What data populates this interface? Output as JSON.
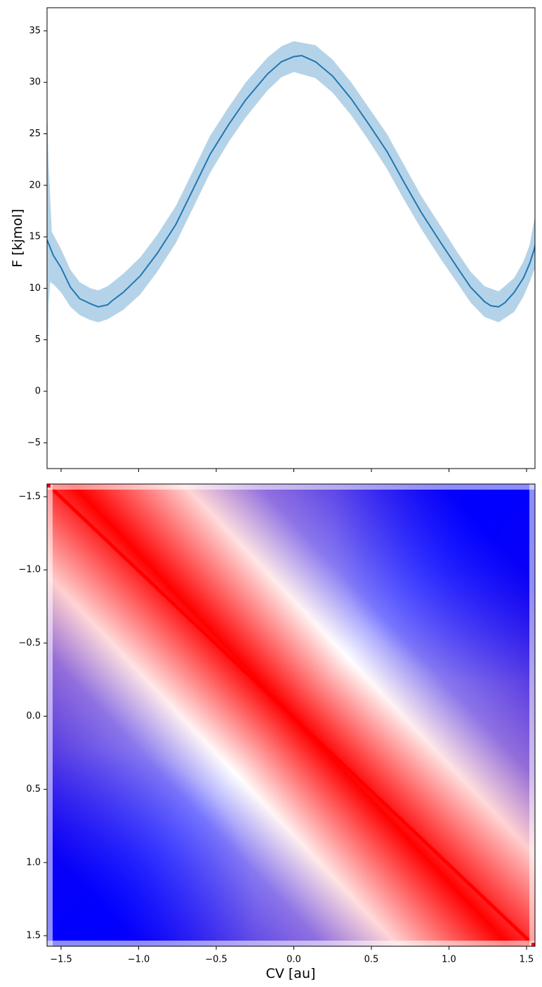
{
  "chart_data": [
    {
      "type": "line",
      "panel": "top",
      "title": "",
      "xlabel": "",
      "ylabel": "F [kjmol]",
      "xlim": [
        -1.59,
        1.58
      ],
      "ylim": [
        -7.5,
        37.3
      ],
      "grid": false,
      "legend": null,
      "yticks": [
        -5,
        0,
        5,
        10,
        15,
        20,
        25,
        30,
        35
      ],
      "ytick_labels": [
        "−5",
        "0",
        "5",
        "10",
        "15",
        "20",
        "25",
        "30",
        "35"
      ],
      "xticks": [
        -1.5,
        -1.0,
        -0.5,
        0.0,
        0.5,
        1.0,
        1.5
      ],
      "xtick_labels_visible": false,
      "line_color": "#1f77b4",
      "band_color": "#b5d3e8",
      "series": [
        {
          "name": "mean F",
          "x": [
            -1.59,
            -1.55,
            -1.5,
            -1.44,
            -1.38,
            -1.31,
            -1.26,
            -1.2,
            -1.17,
            -1.1,
            -0.99,
            -0.88,
            -0.76,
            -0.65,
            -0.54,
            -0.42,
            -0.31,
            -0.17,
            -0.08,
            0.0,
            0.05,
            0.14,
            0.25,
            0.37,
            0.48,
            0.6,
            0.71,
            0.82,
            0.94,
            1.05,
            1.14,
            1.23,
            1.27,
            1.32,
            1.36,
            1.42,
            1.48,
            1.52,
            1.55,
            1.58
          ],
          "values": [
            14.7,
            13.2,
            12.0,
            10.1,
            9.0,
            8.5,
            8.2,
            8.4,
            8.8,
            9.6,
            11.2,
            13.4,
            16.2,
            19.6,
            23.0,
            25.9,
            28.3,
            30.8,
            32.0,
            32.5,
            32.6,
            32.0,
            30.6,
            28.4,
            26.0,
            23.3,
            20.3,
            17.4,
            14.6,
            12.1,
            10.1,
            8.7,
            8.3,
            8.2,
            8.6,
            9.6,
            11.0,
            12.4,
            13.8,
            16.0
          ]
        },
        {
          "name": "upper band",
          "x": [
            -1.59,
            -1.58,
            -1.56,
            -1.5,
            -1.44,
            -1.38,
            -1.31,
            -1.26,
            -1.2,
            -1.1,
            -0.99,
            -0.88,
            -0.76,
            -0.65,
            -0.54,
            -0.42,
            -0.31,
            -0.17,
            -0.08,
            0.0,
            0.14,
            0.25,
            0.37,
            0.48,
            0.6,
            0.71,
            0.82,
            0.94,
            1.05,
            1.14,
            1.23,
            1.32,
            1.42,
            1.48,
            1.52,
            1.56,
            1.58
          ],
          "values": [
            27.5,
            22.0,
            15.5,
            13.8,
            11.8,
            10.6,
            10.0,
            9.8,
            10.2,
            11.4,
            13.0,
            15.2,
            18.0,
            21.4,
            24.8,
            27.6,
            30.0,
            32.4,
            33.5,
            34.0,
            33.6,
            32.2,
            30.0,
            27.6,
            25.0,
            22.0,
            19.0,
            16.2,
            13.6,
            11.6,
            10.2,
            9.7,
            11.0,
            12.6,
            14.2,
            17.5,
            24.0
          ]
        },
        {
          "name": "lower band",
          "x": [
            -1.59,
            -1.58,
            -1.57,
            -1.55,
            -1.5,
            -1.44,
            -1.38,
            -1.31,
            -1.26,
            -1.2,
            -1.1,
            -0.99,
            -0.88,
            -0.76,
            -0.65,
            -0.54,
            -0.42,
            -0.31,
            -0.17,
            -0.08,
            0.0,
            0.14,
            0.25,
            0.37,
            0.48,
            0.6,
            0.71,
            0.82,
            0.94,
            1.05,
            1.14,
            1.23,
            1.32,
            1.42,
            1.48,
            1.52,
            1.55,
            1.57,
            1.58
          ],
          "values": [
            0.0,
            8.5,
            10.6,
            10.4,
            9.6,
            8.2,
            7.4,
            6.9,
            6.7,
            7.0,
            7.9,
            9.4,
            11.6,
            14.4,
            17.8,
            21.2,
            24.2,
            26.6,
            29.2,
            30.5,
            31.0,
            30.4,
            29.0,
            26.8,
            24.4,
            21.6,
            18.6,
            15.8,
            13.0,
            10.6,
            8.6,
            7.2,
            6.7,
            7.7,
            9.2,
            10.6,
            11.8,
            11.0,
            8.0
          ]
        }
      ]
    },
    {
      "type": "heatmap",
      "panel": "bottom",
      "title": "",
      "xlabel": "CV [au]",
      "ylabel": "",
      "colormap": "bwr",
      "x_range": [
        -1.59,
        1.58
      ],
      "y_range": [
        -1.59,
        1.58
      ],
      "y_inverted": true,
      "xticks": [
        -1.5,
        -1.0,
        -0.5,
        0.0,
        0.5,
        1.0,
        1.5
      ],
      "xtick_labels": [
        "−1.5",
        "−1.0",
        "−0.5",
        "0.0",
        "0.5",
        "1.0",
        "1.5"
      ],
      "yticks": [
        -1.5,
        -1.0,
        -0.5,
        0.0,
        0.5,
        1.0,
        1.5
      ],
      "ytick_labels": [
        "−1.5",
        "−1.0",
        "−0.5",
        "0.0",
        "0.5",
        "1.0",
        "1.5"
      ],
      "description": "Symmetric correlation-like matrix: strong positive (red) along diagonal band, white zero contour running from (x≈-0.1,y=-1.55) to (x=1.55,y≈0.15) and mirrored, strong negative (blue) maxima near (1.25,-1.25) and (-1.25,1.25); outermost row/column pale.",
      "features": {
        "diagonal_value": 1.0,
        "negative_extrema": [
          [
            1.25,
            -1.25
          ],
          [
            -1.25,
            1.25
          ]
        ],
        "zero_contour": [
          [
            -0.1,
            -1.55
          ],
          [
            0.15,
            -1.2
          ],
          [
            0.55,
            -0.8
          ],
          [
            1.0,
            -0.4
          ],
          [
            1.3,
            -0.15
          ],
          [
            1.55,
            -0.12
          ]
        ]
      },
      "colors": {
        "positive": "#ff0000",
        "zero": "#ffffff",
        "negative": "#0000ff"
      }
    }
  ],
  "labels": {
    "top_ylabel": "F [kjmol]",
    "bottom_xlabel": "CV [au]"
  }
}
